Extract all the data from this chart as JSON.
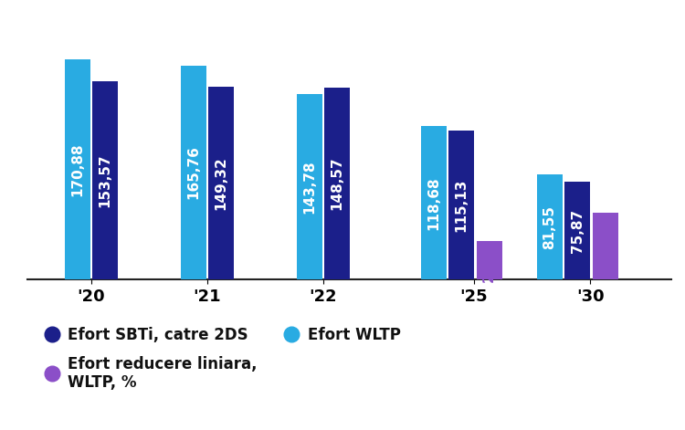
{
  "years": [
    "'20",
    "'21",
    "'22",
    "'25",
    "'30"
  ],
  "wltp": [
    170.88,
    165.76,
    143.78,
    118.68,
    81.55
  ],
  "sbti": [
    153.57,
    149.32,
    148.57,
    115.13,
    75.87
  ],
  "linear": [
    null,
    null,
    null,
    29.69,
    51.65
  ],
  "wltp_color": "#29ABE2",
  "sbti_color": "#1B1F8A",
  "linear_color": "#8B4FC8",
  "background_color": "#FFFFFF",
  "bar_width": 0.22,
  "bar_gap": 0.02,
  "group_centers": [
    0.5,
    1.5,
    2.5,
    3.8,
    4.8
  ],
  "label_sbti": "Efort SBTi, catre 2DS",
  "label_wltp": "Efort WLTP",
  "label_linear": "Efort reducere liniara,\nWLTP, %",
  "label_fontsize": 12,
  "bar_label_fontsize": 11,
  "tick_fontsize": 13,
  "ylim": [
    0,
    210
  ],
  "xlim_left": -0.05,
  "xlim_right": 5.5
}
